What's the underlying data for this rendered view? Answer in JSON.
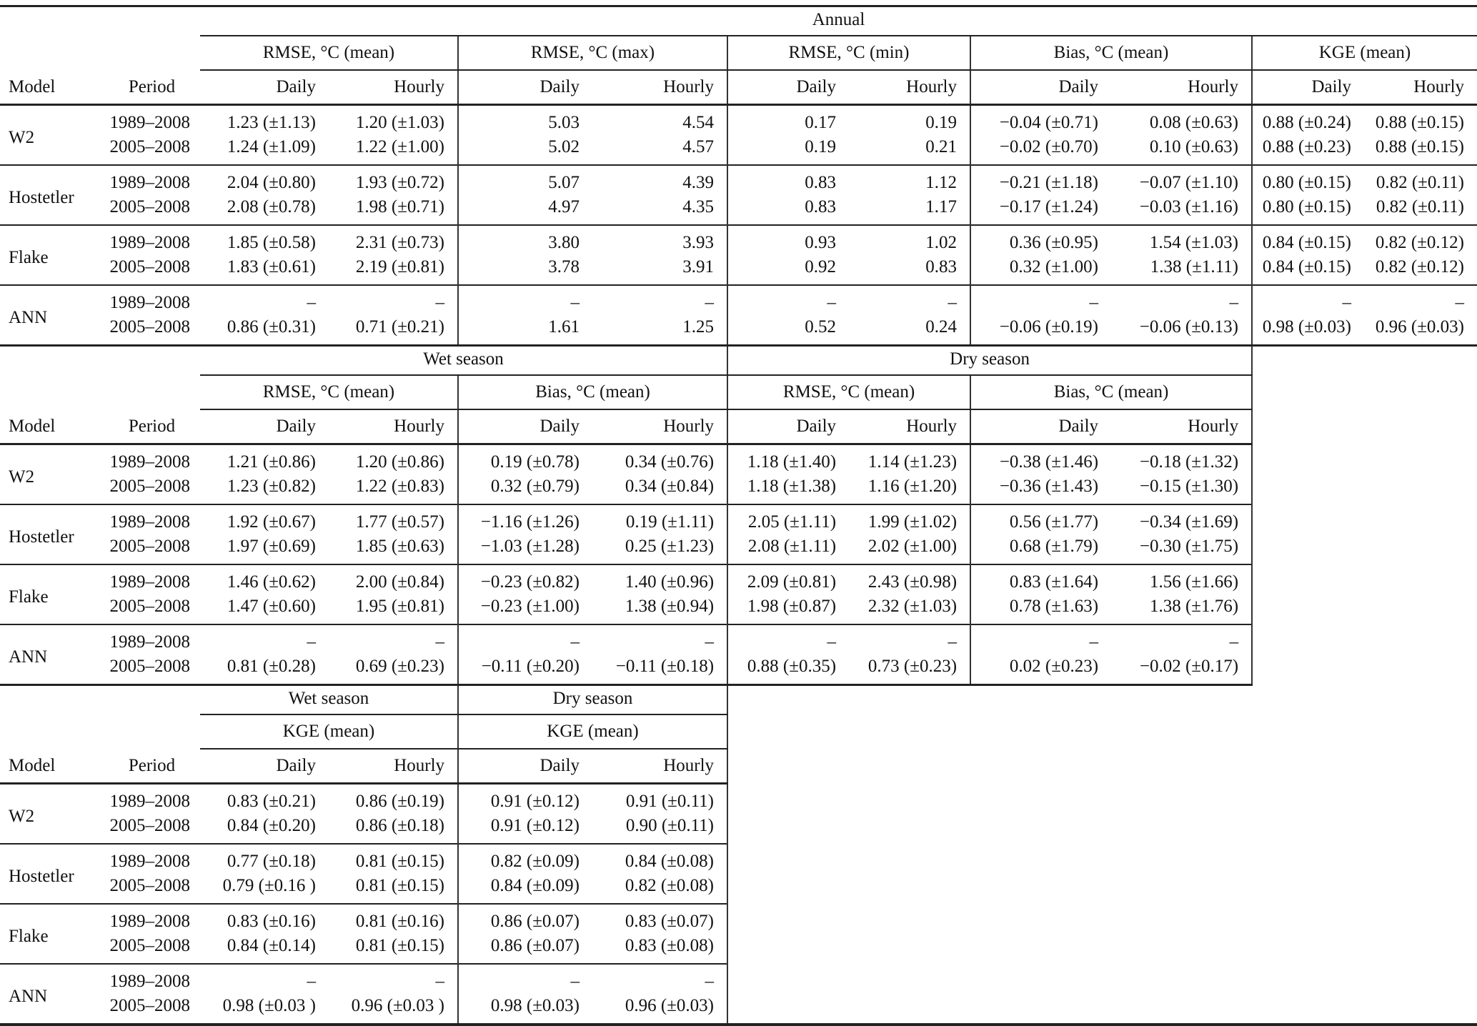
{
  "blocks": [
    {
      "spans": [
        {
          "label": "Annual",
          "group_count": 5
        }
      ],
      "groups": [
        "RMSE, °C (mean)",
        "RMSE, °C (max)",
        "RMSE, °C (min)",
        "Bias, °C (mean)",
        "KGE (mean)"
      ],
      "model_header": "Model",
      "period_header": "Period",
      "daily_label": "Daily",
      "hourly_label": "Hourly",
      "sections": [
        {
          "model": "W2",
          "rows": [
            {
              "period": "1989–2008",
              "values": [
                "1.23 (±1.13)",
                "1.20 (±1.03)",
                "5.03",
                "4.54",
                "0.17",
                "0.19",
                "−0.04 (±0.71)",
                "0.08 (±0.63)",
                "0.88 (±0.24)",
                "0.88 (±0.15)"
              ]
            },
            {
              "period": "2005–2008",
              "values": [
                "1.24 (±1.09)",
                "1.22 (±1.00)",
                "5.02",
                "4.57",
                "0.19",
                "0.21",
                "−0.02 (±0.70)",
                "0.10 (±0.63)",
                "0.88 (±0.23)",
                "0.88 (±0.15)"
              ]
            }
          ]
        },
        {
          "model": "Hostetler",
          "rows": [
            {
              "period": "1989–2008",
              "values": [
                "2.04 (±0.80)",
                "1.93 (±0.72)",
                "5.07",
                "4.39",
                "0.83",
                "1.12",
                "−0.21 (±1.18)",
                "−0.07 (±1.10)",
                "0.80 (±0.15)",
                "0.82 (±0.11)"
              ]
            },
            {
              "period": "2005–2008",
              "values": [
                "2.08 (±0.78)",
                "1.98 (±0.71)",
                "4.97",
                "4.35",
                "0.83",
                "1.17",
                "−0.17 (±1.24)",
                "−0.03 (±1.16)",
                "0.80 (±0.15)",
                "0.82 (±0.11)"
              ]
            }
          ]
        },
        {
          "model": "Flake",
          "rows": [
            {
              "period": "1989–2008",
              "values": [
                "1.85 (±0.58)",
                "2.31 (±0.73)",
                "3.80",
                "3.93",
                "0.93",
                "1.02",
                "0.36 (±0.95)",
                "1.54 (±1.03)",
                "0.84 (±0.15)",
                "0.82 (±0.12)"
              ]
            },
            {
              "period": "2005–2008",
              "values": [
                "1.83 (±0.61)",
                "2.19 (±0.81)",
                "3.78",
                "3.91",
                "0.92",
                "0.83",
                "0.32 (±1.00)",
                "1.38 (±1.11)",
                "0.84 (±0.15)",
                "0.82 (±0.12)"
              ]
            }
          ]
        },
        {
          "model": "ANN",
          "rows": [
            {
              "period": "1989–2008",
              "values": [
                "–",
                "–",
                "–",
                "–",
                "–",
                "–",
                "–",
                "–",
                "–",
                "–"
              ]
            },
            {
              "period": "2005–2008",
              "values": [
                "0.86 (±0.31)",
                "0.71 (±0.21)",
                "1.61",
                "1.25",
                "0.52",
                "0.24",
                "−0.06 (±0.19)",
                "−0.06 (±0.13)",
                "0.98 (±0.03)",
                "0.96 (±0.03)"
              ]
            }
          ]
        }
      ]
    },
    {
      "spans": [
        {
          "label": "Wet season",
          "group_count": 2
        },
        {
          "label": "Dry season",
          "group_count": 2
        }
      ],
      "groups": [
        "RMSE, °C (mean)",
        "Bias, °C (mean)",
        "RMSE, °C (mean)",
        "Bias, °C (mean)"
      ],
      "model_header": "Model",
      "period_header": "Period",
      "daily_label": "Daily",
      "hourly_label": "Hourly",
      "sections": [
        {
          "model": "W2",
          "rows": [
            {
              "period": "1989–2008",
              "values": [
                "1.21 (±0.86)",
                "1.20 (±0.86)",
                "0.19 (±0.78)",
                "0.34 (±0.76)",
                "1.18 (±1.40)",
                "1.14 (±1.23)",
                "−0.38 (±1.46)",
                "−0.18 (±1.32)"
              ]
            },
            {
              "period": "2005–2008",
              "values": [
                "1.23 (±0.82)",
                "1.22 (±0.83)",
                "0.32 (±0.79)",
                "0.34 (±0.84)",
                "1.18 (±1.38)",
                "1.16 (±1.20)",
                "−0.36 (±1.43)",
                "−0.15 (±1.30)"
              ]
            }
          ]
        },
        {
          "model": "Hostetler",
          "rows": [
            {
              "period": "1989–2008",
              "values": [
                "1.92 (±0.67)",
                "1.77 (±0.57)",
                "−1.16 (±1.26)",
                "0.19 (±1.11)",
                "2.05 (±1.11)",
                "1.99 (±1.02)",
                "0.56 (±1.77)",
                "−0.34 (±1.69)"
              ]
            },
            {
              "period": "2005–2008",
              "values": [
                "1.97 (±0.69)",
                "1.85 (±0.63)",
                "−1.03 (±1.28)",
                "0.25 (±1.23)",
                "2.08 (±1.11)",
                "2.02 (±1.00)",
                "0.68 (±1.79)",
                "−0.30 (±1.75)"
              ]
            }
          ]
        },
        {
          "model": "Flake",
          "rows": [
            {
              "period": "1989–2008",
              "values": [
                "1.46 (±0.62)",
                "2.00 (±0.84)",
                "−0.23 (±0.82)",
                "1.40 (±0.96)",
                "2.09 (±0.81)",
                "2.43 (±0.98)",
                "0.83 (±1.64)",
                "1.56 (±1.66)"
              ]
            },
            {
              "period": "2005–2008",
              "values": [
                "1.47 (±0.60)",
                "1.95 (±0.81)",
                "−0.23 (±1.00)",
                "1.38 (±0.94)",
                "1.98 (±0.87)",
                "2.32 (±1.03)",
                "0.78 (±1.63)",
                "1.38 (±1.76)"
              ]
            }
          ]
        },
        {
          "model": "ANN",
          "rows": [
            {
              "period": "1989–2008",
              "values": [
                "–",
                "–",
                "–",
                "–",
                "–",
                "–",
                "–",
                "–"
              ]
            },
            {
              "period": "2005–2008",
              "values": [
                "0.81 (±0.28)",
                "0.69 (±0.23)",
                "−0.11 (±0.20)",
                "−0.11 (±0.18)",
                "0.88 (±0.35)",
                "0.73 (±0.23)",
                "0.02 (±0.23)",
                "−0.02 (±0.17)"
              ]
            }
          ]
        }
      ]
    },
    {
      "spans": [
        {
          "label": "Wet season",
          "group_count": 1
        },
        {
          "label": "Dry season",
          "group_count": 1
        }
      ],
      "groups": [
        "KGE (mean)",
        "KGE (mean)"
      ],
      "model_header": "Model",
      "period_header": "Period",
      "daily_label": "Daily",
      "hourly_label": "Hourly",
      "sections": [
        {
          "model": "W2",
          "rows": [
            {
              "period": "1989–2008",
              "values": [
                "0.83 (±0.21)",
                "0.86 (±0.19)",
                "0.91 (±0.12)",
                "0.91 (±0.11)"
              ]
            },
            {
              "period": "2005–2008",
              "values": [
                "0.84 (±0.20)",
                "0.86 (±0.18)",
                "0.91 (±0.12)",
                "0.90 (±0.11)"
              ]
            }
          ]
        },
        {
          "model": "Hostetler",
          "rows": [
            {
              "period": "1989–2008",
              "values": [
                "0.77 (±0.18)",
                "0.81 (±0.15)",
                "0.82 (±0.09)",
                "0.84 (±0.08)"
              ]
            },
            {
              "period": "2005–2008",
              "values": [
                "0.79 (±0.16 )",
                "0.81 (±0.15)",
                "0.84 (±0.09)",
                "0.82 (±0.08)"
              ]
            }
          ]
        },
        {
          "model": "Flake",
          "rows": [
            {
              "period": "1989–2008",
              "values": [
                "0.83 (±0.16)",
                "0.81 (±0.16)",
                "0.86 (±0.07)",
                "0.83 (±0.07)"
              ]
            },
            {
              "period": "2005–2008",
              "values": [
                "0.84 (±0.14)",
                "0.81 (±0.15)",
                "0.86 (±0.07)",
                "0.83 (±0.08)"
              ]
            }
          ]
        },
        {
          "model": "ANN",
          "rows": [
            {
              "period": "1989–2008",
              "values": [
                "–",
                "–",
                "–",
                "–"
              ]
            },
            {
              "period": "2005–2008",
              "values": [
                "0.98 (±0.03 )",
                "0.96 (±0.03 )",
                "0.98 (±0.03)",
                "0.96 (±0.03)"
              ]
            }
          ]
        }
      ]
    }
  ]
}
